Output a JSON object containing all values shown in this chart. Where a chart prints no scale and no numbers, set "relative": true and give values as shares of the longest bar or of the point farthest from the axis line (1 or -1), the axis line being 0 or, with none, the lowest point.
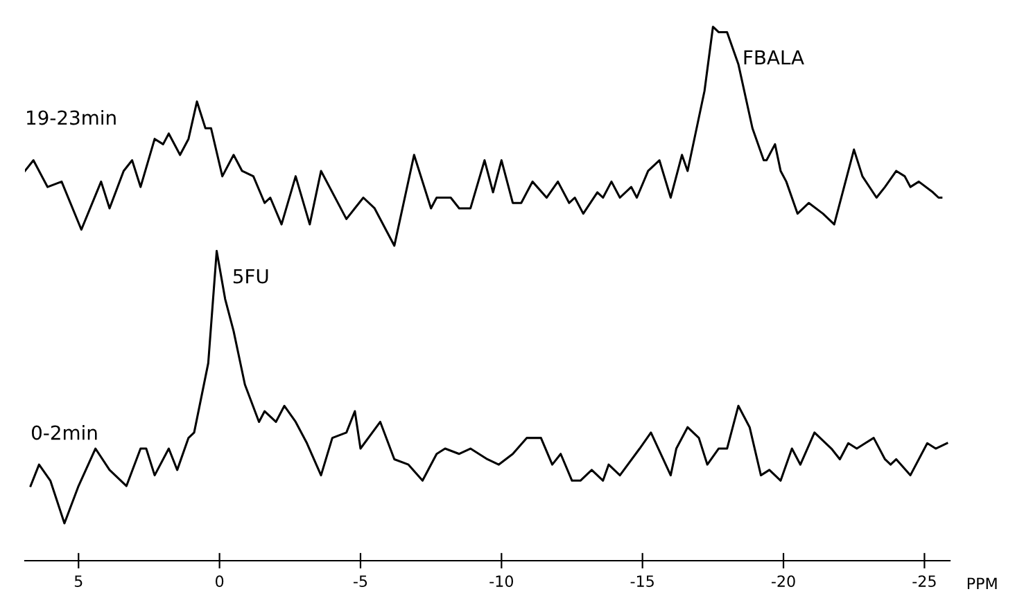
{
  "chart_data": {
    "type": "line",
    "relative": true,
    "xlabel": "PPM",
    "xlim": [
      6.9,
      -25.9
    ],
    "xticks": [
      5,
      0,
      -5,
      -10,
      -15,
      -20,
      -25
    ],
    "tick_labels": "x",
    "annotations": [
      {
        "text": "5FU",
        "x": 0.1,
        "y": 0.58
      },
      {
        "text": "FBALA",
        "x": -18.0,
        "y": 0.99
      }
    ],
    "series": [
      {
        "name": "19-23min",
        "color": "#000000",
        "x": [
          6.9,
          6.6,
          6.1,
          5.6,
          4.9,
          4.2,
          3.9,
          3.4,
          3.1,
          2.8,
          2.3,
          2.0,
          1.8,
          1.4,
          1.1,
          0.8,
          0.5,
          0.3,
          -0.1,
          -0.5,
          -0.8,
          -1.2,
          -1.6,
          -1.8,
          -2.2,
          -2.7,
          -3.2,
          -3.6,
          -4.5,
          -5.1,
          -5.5,
          -6.2,
          -6.9,
          -7.5,
          -7.7,
          -8.2,
          -8.5,
          -8.9,
          -9.4,
          -9.7,
          -10.0,
          -10.4,
          -10.7,
          -11.1,
          -11.6,
          -12.0,
          -12.4,
          -12.6,
          -12.9,
          -13.4,
          -13.6,
          -13.9,
          -14.2,
          -14.6,
          -14.8,
          -15.2,
          -15.6,
          -16.0,
          -16.4,
          -16.6,
          -17.2,
          -17.5,
          -17.7,
          -18.0,
          -18.4,
          -18.9,
          -19.3,
          -19.4,
          -19.7,
          -19.9,
          -20.1,
          -20.5,
          -20.9,
          -21.4,
          -21.8,
          -22.5,
          -22.8,
          -23.3,
          -23.6,
          -24.0,
          -24.3,
          -24.5,
          -24.8,
          -25.3,
          -25.5,
          -25.6
        ],
        "values": [
          0.73,
          0.75,
          0.7,
          0.71,
          0.62,
          0.71,
          0.66,
          0.73,
          0.75,
          0.7,
          0.79,
          0.78,
          0.8,
          0.76,
          0.79,
          0.86,
          0.81,
          0.81,
          0.72,
          0.76,
          0.73,
          0.72,
          0.67,
          0.68,
          0.63,
          0.72,
          0.63,
          0.73,
          0.64,
          0.68,
          0.66,
          0.59,
          0.76,
          0.66,
          0.68,
          0.68,
          0.66,
          0.66,
          0.75,
          0.69,
          0.75,
          0.67,
          0.67,
          0.71,
          0.68,
          0.71,
          0.67,
          0.68,
          0.65,
          0.69,
          0.68,
          0.71,
          0.68,
          0.7,
          0.68,
          0.73,
          0.75,
          0.68,
          0.76,
          0.73,
          0.88,
          1.0,
          0.99,
          0.99,
          0.93,
          0.81,
          0.75,
          0.75,
          0.78,
          0.73,
          0.71,
          0.65,
          0.67,
          0.65,
          0.63,
          0.77,
          0.72,
          0.68,
          0.7,
          0.73,
          0.72,
          0.7,
          0.71,
          0.69,
          0.68,
          0.68
        ]
      },
      {
        "name": "0-2min",
        "color": "#000000",
        "x": [
          6.7,
          6.4,
          6.0,
          5.5,
          5.0,
          4.4,
          3.9,
          3.3,
          2.8,
          2.6,
          2.3,
          1.8,
          1.5,
          1.1,
          0.9,
          0.4,
          0.1,
          -0.2,
          -0.5,
          -0.9,
          -1.4,
          -1.6,
          -2.0,
          -2.3,
          -2.7,
          -3.1,
          -3.6,
          -4.0,
          -4.5,
          -4.8,
          -5.0,
          -5.7,
          -6.2,
          -6.7,
          -7.2,
          -7.7,
          -8.0,
          -8.5,
          -8.9,
          -9.5,
          -9.9,
          -10.4,
          -10.9,
          -11.4,
          -11.8,
          -12.1,
          -12.5,
          -12.8,
          -13.2,
          -13.6,
          -13.8,
          -14.2,
          -14.9,
          -15.3,
          -16.0,
          -16.2,
          -16.6,
          -17.0,
          -17.3,
          -17.7,
          -18.0,
          -18.4,
          -18.8,
          -19.2,
          -19.5,
          -19.9,
          -20.3,
          -20.6,
          -21.1,
          -21.7,
          -22.0,
          -22.3,
          -22.6,
          -22.9,
          -23.2,
          -23.6,
          -23.8,
          -24.0,
          -24.5,
          -25.1,
          -25.4,
          -25.8
        ],
        "values": [
          0.14,
          0.18,
          0.15,
          0.07,
          0.14,
          0.21,
          0.17,
          0.14,
          0.21,
          0.21,
          0.16,
          0.21,
          0.17,
          0.23,
          0.24,
          0.37,
          0.58,
          0.49,
          0.43,
          0.33,
          0.26,
          0.28,
          0.26,
          0.29,
          0.26,
          0.22,
          0.16,
          0.23,
          0.24,
          0.28,
          0.21,
          0.26,
          0.19,
          0.18,
          0.15,
          0.2,
          0.21,
          0.2,
          0.21,
          0.19,
          0.18,
          0.2,
          0.23,
          0.23,
          0.18,
          0.2,
          0.15,
          0.15,
          0.17,
          0.15,
          0.18,
          0.16,
          0.21,
          0.24,
          0.16,
          0.21,
          0.25,
          0.23,
          0.18,
          0.21,
          0.21,
          0.29,
          0.25,
          0.16,
          0.17,
          0.15,
          0.21,
          0.18,
          0.24,
          0.21,
          0.19,
          0.22,
          0.21,
          0.22,
          0.23,
          0.19,
          0.18,
          0.19,
          0.16,
          0.22,
          0.21,
          0.22
        ]
      }
    ]
  }
}
